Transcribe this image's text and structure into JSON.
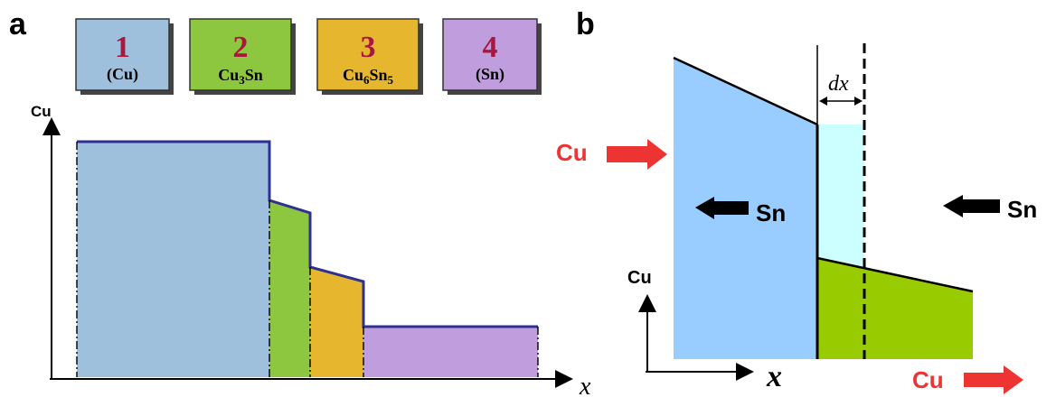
{
  "panel_a": {
    "panel_label": "a",
    "y_axis_label": "Cu",
    "x_axis_label": "x",
    "legend": [
      {
        "number": "1",
        "label": "(Cu)",
        "color": "#9fc0dc"
      },
      {
        "number": "2",
        "label": "Cu",
        "label_sub": "3",
        "label_tail": "Sn",
        "color": "#8dc63f"
      },
      {
        "number": "3",
        "label": "Cu",
        "label_sub": "6",
        "label_tail": "Sn",
        "label_sub2": "5",
        "color": "#e6b72e"
      },
      {
        "number": "4",
        "label": "(Sn)",
        "color": "#c09ddc"
      }
    ],
    "number_color": "#a8173f"
  },
  "panel_b": {
    "panel_label": "b",
    "dx_label": "dx",
    "cu_in_label": "Cu",
    "cu_out_label": "Cu",
    "sn_left_label": "Sn",
    "sn_right_label": "Sn",
    "y_axis_label": "Cu",
    "x_axis_label": "x",
    "colors": {
      "left_phase": "#99ccff",
      "new_layer": "#ccffff",
      "right_phase": "#99cc00",
      "arrow_red": "#ee3333"
    }
  }
}
